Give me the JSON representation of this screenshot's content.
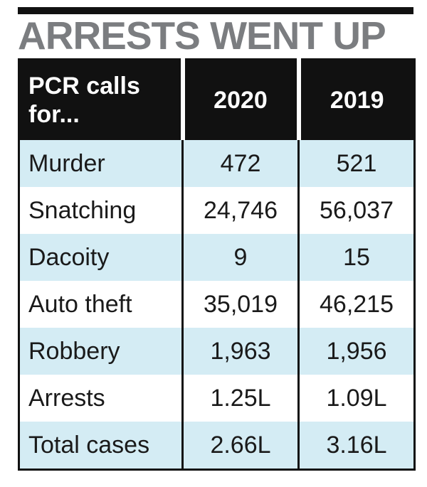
{
  "header": {
    "title": "ARRESTS WENT UP"
  },
  "table": {
    "columns": [
      "PCR calls for...",
      "2020",
      "2019"
    ],
    "rows": [
      [
        "Murder",
        "472",
        "521"
      ],
      [
        "Snatching",
        "24,746",
        "56,037"
      ],
      [
        "Dacoity",
        "9",
        "15"
      ],
      [
        "Auto theft",
        "35,019",
        "46,215"
      ],
      [
        "Robbery",
        "1,963",
        "1,956"
      ],
      [
        "Arrests",
        "1.25L",
        "1.09L"
      ],
      [
        "Total cases",
        "2.66L",
        "3.16L"
      ]
    ]
  }
}
